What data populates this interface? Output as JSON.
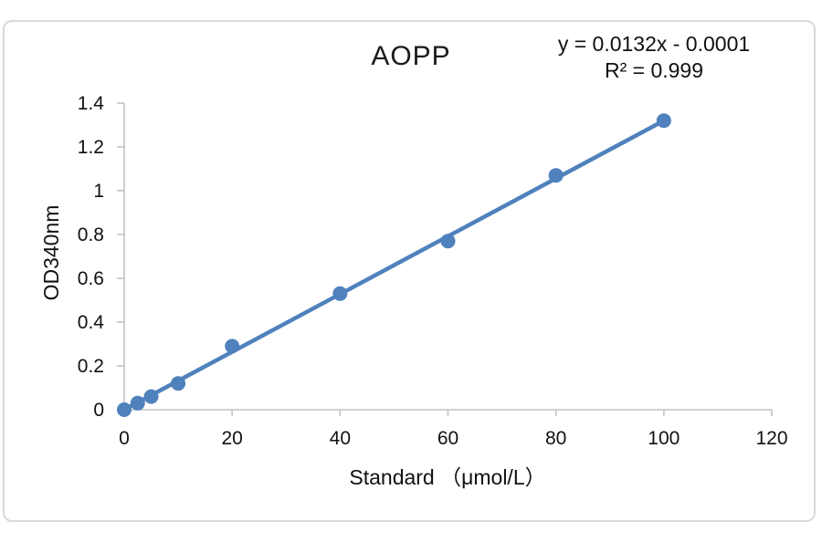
{
  "chart_data": {
    "type": "scatter",
    "title": "AOPP",
    "annotation": [
      "y = 0.0132x - 0.0001",
      "R² = 0.999"
    ],
    "xlabel": "Standard （μmol/L）",
    "ylabel": "OD340nm",
    "xlim": [
      0,
      120
    ],
    "ylim": [
      0,
      1.4
    ],
    "x_ticks": [
      0,
      20,
      40,
      60,
      80,
      100,
      120
    ],
    "x_tick_labels": [
      "0",
      "20",
      "40",
      "60",
      "80",
      "100",
      "120"
    ],
    "y_ticks": [
      0,
      0.2,
      0.4,
      0.6,
      0.8,
      1.0,
      1.2,
      1.4
    ],
    "y_tick_labels": [
      "0",
      "0.2",
      "0.4",
      "0.6",
      "0.8",
      "1",
      "1.2",
      "1.4"
    ],
    "grid": false,
    "legend": "none",
    "series": [
      {
        "name": "AOPP standards",
        "x": [
          0,
          2.5,
          5,
          10,
          20,
          40,
          60,
          80,
          100
        ],
        "y": [
          0.0,
          0.03,
          0.06,
          0.12,
          0.29,
          0.53,
          0.77,
          1.07,
          1.32
        ],
        "marker": "circle",
        "marker_color": "#4F81BD"
      }
    ],
    "trendline": {
      "slope": 0.0132,
      "intercept": -0.0001,
      "x_start": 0,
      "x_end": 100,
      "color": "#4F81BD"
    },
    "colors": {
      "axis_line": "#C3C3C3",
      "chart_border": "#D9D9D9",
      "background": "#FFFFFF",
      "text": "#111111"
    }
  }
}
